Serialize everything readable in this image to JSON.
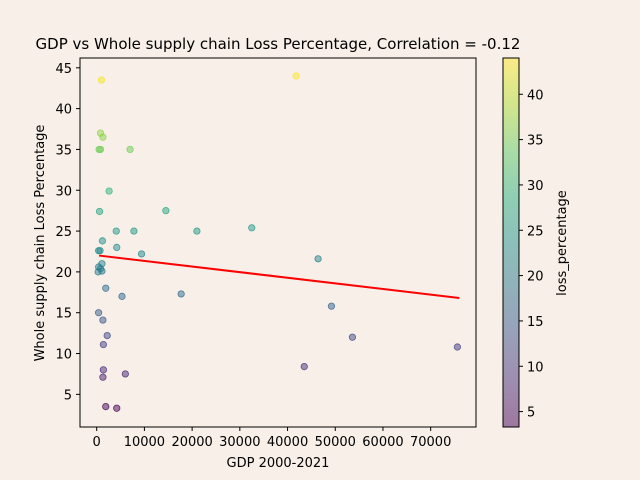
{
  "chart_data": {
    "type": "scatter",
    "title": "GDP vs Whole supply chain Loss Percentage, Correlation = -0.12",
    "xlabel": "GDP 2000-2021",
    "ylabel": "Whole supply chain Loss Percentage",
    "xlim": [
      -3500,
      79500
    ],
    "ylim": [
      1,
      46.2
    ],
    "xticks": [
      0,
      10000,
      20000,
      30000,
      40000,
      50000,
      60000,
      70000
    ],
    "yticks": [
      5,
      10,
      15,
      20,
      25,
      30,
      35,
      40,
      45
    ],
    "colorbar": {
      "label": "loss_percentage",
      "colormap": "viridis",
      "alpha": 0.5,
      "range": [
        3.3,
        44
      ],
      "ticks": [
        5,
        10,
        15,
        20,
        25,
        30,
        35,
        40
      ]
    },
    "trendline": {
      "color": "#ff0000",
      "x": [
        500,
        76000
      ],
      "y": [
        22.0,
        16.8
      ]
    },
    "points": [
      {
        "x": 1000,
        "y": 43.5
      },
      {
        "x": 41800,
        "y": 44.0
      },
      {
        "x": 800,
        "y": 37.0
      },
      {
        "x": 1300,
        "y": 36.5
      },
      {
        "x": 500,
        "y": 35.0
      },
      {
        "x": 800,
        "y": 35.0
      },
      {
        "x": 7000,
        "y": 35.0
      },
      {
        "x": 2600,
        "y": 29.9
      },
      {
        "x": 600,
        "y": 27.4
      },
      {
        "x": 14500,
        "y": 27.5
      },
      {
        "x": 32500,
        "y": 25.4
      },
      {
        "x": 4100,
        "y": 25.0
      },
      {
        "x": 7800,
        "y": 25.0
      },
      {
        "x": 21000,
        "y": 25.0
      },
      {
        "x": 1200,
        "y": 23.8
      },
      {
        "x": 4200,
        "y": 23.0
      },
      {
        "x": 400,
        "y": 22.6
      },
      {
        "x": 700,
        "y": 22.6
      },
      {
        "x": 9400,
        "y": 22.2
      },
      {
        "x": 46400,
        "y": 21.6
      },
      {
        "x": 1100,
        "y": 21.0
      },
      {
        "x": 400,
        "y": 20.6
      },
      {
        "x": 800,
        "y": 20.4
      },
      {
        "x": 300,
        "y": 20.0
      },
      {
        "x": 1100,
        "y": 20.1
      },
      {
        "x": 1900,
        "y": 18.0
      },
      {
        "x": 17700,
        "y": 17.3
      },
      {
        "x": 5300,
        "y": 17.0
      },
      {
        "x": 49200,
        "y": 15.8
      },
      {
        "x": 400,
        "y": 15.0
      },
      {
        "x": 1300,
        "y": 14.1
      },
      {
        "x": 2200,
        "y": 12.2
      },
      {
        "x": 53600,
        "y": 12.0
      },
      {
        "x": 1400,
        "y": 11.1
      },
      {
        "x": 75600,
        "y": 10.8
      },
      {
        "x": 43500,
        "y": 8.4
      },
      {
        "x": 1400,
        "y": 8.0
      },
      {
        "x": 6000,
        "y": 7.5
      },
      {
        "x": 1300,
        "y": 7.1
      },
      {
        "x": 1900,
        "y": 3.5
      },
      {
        "x": 4200,
        "y": 3.3
      }
    ]
  }
}
